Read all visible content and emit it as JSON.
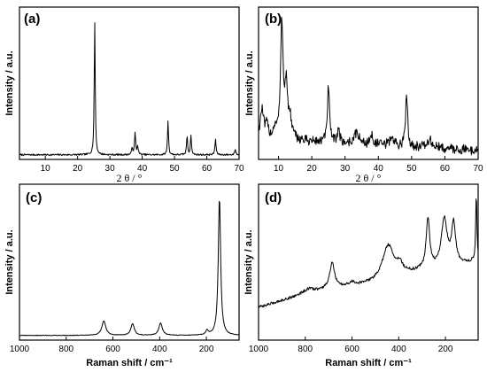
{
  "chart_data": [
    {
      "panel": "(a)",
      "type": "line",
      "xlabel": "2 θ / °",
      "ylabel": "Intensity / a.u.",
      "xlim": [
        2,
        70
      ],
      "xticks": [
        10,
        20,
        30,
        40,
        50,
        60,
        70
      ],
      "xtick_labels": [
        "10",
        "20",
        "30",
        "40",
        "50",
        "60",
        "70"
      ],
      "ylim": [
        0,
        1
      ],
      "baseline": 0.02,
      "noise": 0.006,
      "peaks": [
        {
          "x": 25.3,
          "height": 0.93,
          "width": 0.18
        },
        {
          "x": 36.9,
          "height": 0.05,
          "width": 0.2
        },
        {
          "x": 37.8,
          "height": 0.15,
          "width": 0.2
        },
        {
          "x": 38.6,
          "height": 0.06,
          "width": 0.2
        },
        {
          "x": 48.0,
          "height": 0.24,
          "width": 0.18
        },
        {
          "x": 53.9,
          "height": 0.14,
          "width": 0.18
        },
        {
          "x": 55.1,
          "height": 0.14,
          "width": 0.18
        },
        {
          "x": 62.7,
          "height": 0.11,
          "width": 0.2
        },
        {
          "x": 68.8,
          "height": 0.04,
          "width": 0.2
        }
      ]
    },
    {
      "panel": "(b)",
      "type": "line",
      "xlabel": "2 θ / °",
      "ylabel": "Intensity / a.u.",
      "xlim": [
        4,
        70
      ],
      "xticks": [
        10,
        20,
        30,
        40,
        50,
        60,
        70
      ],
      "xtick_labels": [
        "10",
        "20",
        "30",
        "40",
        "50",
        "60",
        "70"
      ],
      "ylim": [
        0,
        1
      ],
      "baseline": 0.13,
      "noise": 0.035,
      "peaks": [
        {
          "x": 5.0,
          "height": 0.2,
          "width": 0.6
        },
        {
          "x": 6.5,
          "height": 0.08,
          "width": 0.5
        },
        {
          "x": 9.0,
          "height": 0.07,
          "width": 0.6
        },
        {
          "x": 11.0,
          "height": 0.8,
          "width": 0.45
        },
        {
          "x": 12.3,
          "height": 0.36,
          "width": 0.5
        },
        {
          "x": 13.5,
          "height": 0.12,
          "width": 0.6
        },
        {
          "x": 25.0,
          "height": 0.4,
          "width": 0.35
        },
        {
          "x": 28.0,
          "height": 0.1,
          "width": 0.4
        },
        {
          "x": 33.5,
          "height": 0.08,
          "width": 0.8
        },
        {
          "x": 38.0,
          "height": 0.06,
          "width": 0.6
        },
        {
          "x": 44.0,
          "height": 0.06,
          "width": 0.7
        },
        {
          "x": 48.5,
          "height": 0.38,
          "width": 0.35
        },
        {
          "x": 55.5,
          "height": 0.05,
          "width": 1.0
        }
      ],
      "slope": -0.0012
    },
    {
      "panel": "(c)",
      "type": "line",
      "xlabel": "Raman shift / cm⁻¹",
      "ylabel": "Intensity / a.u.",
      "xlim": [
        1000,
        60
      ],
      "xticks": [
        1000,
        800,
        600,
        400,
        200
      ],
      "xtick_labels": [
        "1000",
        "800",
        "600",
        "400",
        "200"
      ],
      "ylim": [
        0,
        1
      ],
      "baseline": 0.02,
      "noise": 0.002,
      "peaks": [
        {
          "x": 144,
          "height": 0.95,
          "width": 6
        },
        {
          "x": 197,
          "height": 0.03,
          "width": 6
        },
        {
          "x": 396,
          "height": 0.085,
          "width": 9
        },
        {
          "x": 516,
          "height": 0.08,
          "width": 9
        },
        {
          "x": 639,
          "height": 0.1,
          "width": 10
        }
      ]
    },
    {
      "panel": "(d)",
      "type": "line",
      "xlabel": "Raman shift / cm⁻¹",
      "ylabel": "Intensity / a.u.",
      "xlim": [
        1000,
        60
      ],
      "xticks": [
        1000,
        800,
        600,
        400,
        200
      ],
      "xtick_labels": [
        "1000",
        "800",
        "600",
        "400",
        "200"
      ],
      "ylim": [
        0,
        1
      ],
      "noise": 0.01,
      "background": [
        [
          1000,
          0.15
        ],
        [
          900,
          0.2
        ],
        [
          800,
          0.25
        ],
        [
          700,
          0.28
        ],
        [
          600,
          0.3
        ],
        [
          500,
          0.33
        ],
        [
          400,
          0.38
        ],
        [
          300,
          0.42
        ],
        [
          200,
          0.45
        ],
        [
          100,
          0.48
        ],
        [
          60,
          0.5
        ]
      ],
      "peaks": [
        {
          "x": 785,
          "height": 0.03,
          "width": 30
        },
        {
          "x": 685,
          "height": 0.19,
          "width": 13
        },
        {
          "x": 600,
          "height": 0.03,
          "width": 20
        },
        {
          "x": 445,
          "height": 0.25,
          "width": 30
        },
        {
          "x": 395,
          "height": 0.06,
          "width": 15
        },
        {
          "x": 275,
          "height": 0.37,
          "width": 9
        },
        {
          "x": 205,
          "height": 0.35,
          "width": 15
        },
        {
          "x": 165,
          "height": 0.3,
          "width": 10
        },
        {
          "x": 68,
          "height": 0.5,
          "width": 3
        }
      ]
    }
  ]
}
